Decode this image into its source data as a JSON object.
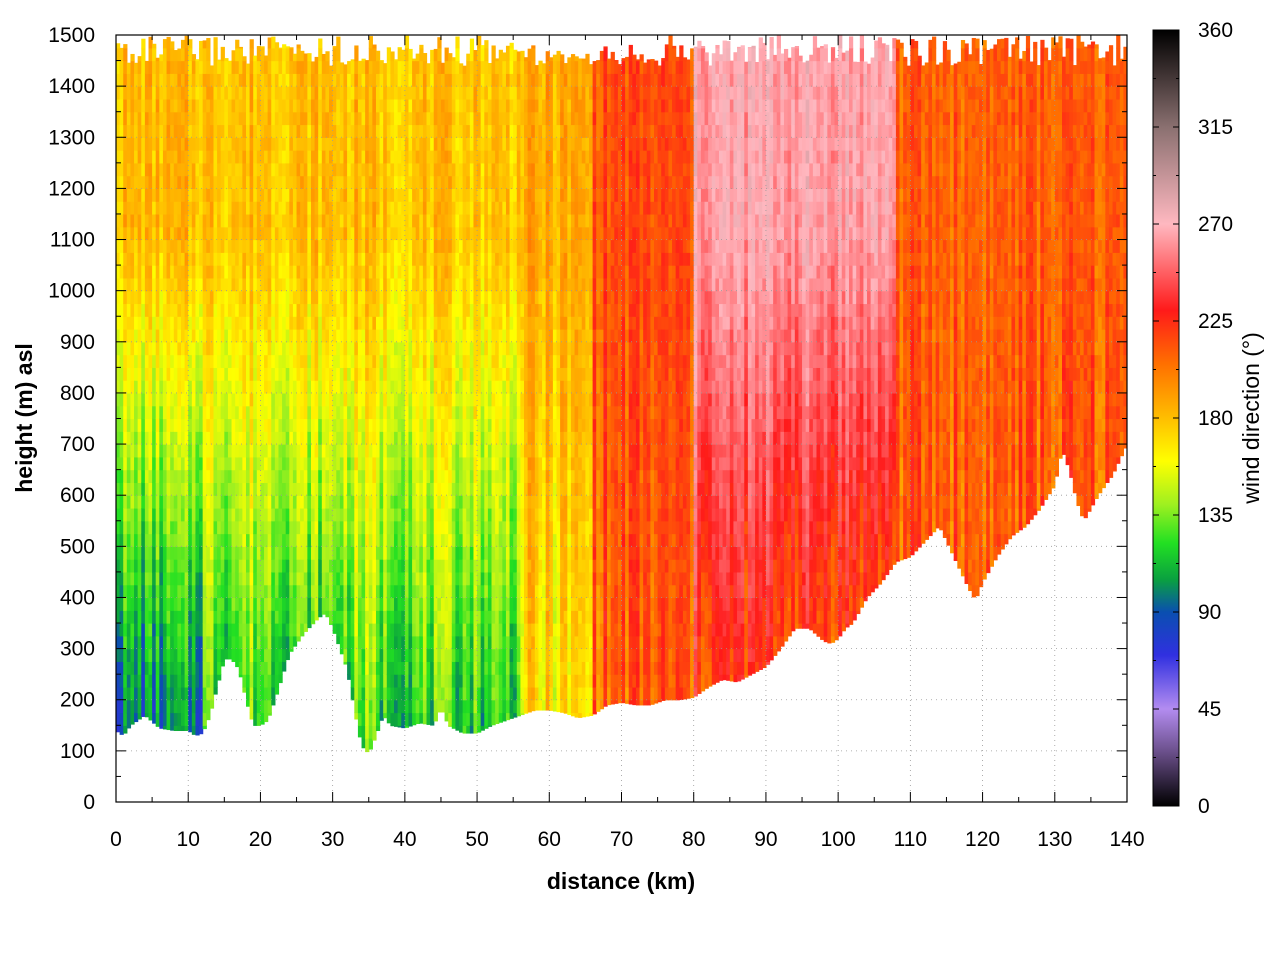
{
  "chart_data": {
    "type": "heatmap",
    "title": "",
    "xlabel": "distance (km)",
    "ylabel": "height (m) asl",
    "colorbar_label": "wind direction (°)",
    "xlim": [
      0,
      140
    ],
    "ylim": [
      0,
      1500
    ],
    "zlim": [
      0,
      360
    ],
    "x_ticks": [
      0,
      10,
      20,
      30,
      40,
      50,
      60,
      70,
      80,
      90,
      100,
      110,
      120,
      130,
      140
    ],
    "y_ticks": [
      0,
      100,
      200,
      300,
      400,
      500,
      600,
      700,
      800,
      900,
      1000,
      1100,
      1200,
      1300,
      1400,
      1500
    ],
    "colorbar_ticks": [
      0,
      45,
      90,
      135,
      180,
      225,
      270,
      315,
      360
    ],
    "grid": true,
    "colormap": [
      {
        "value": 0,
        "color": "#000000"
      },
      {
        "value": 25,
        "color": "#6a4f8a"
      },
      {
        "value": 45,
        "color": "#b38cf0"
      },
      {
        "value": 70,
        "color": "#3030e0"
      },
      {
        "value": 90,
        "color": "#0a4fb0"
      },
      {
        "value": 105,
        "color": "#0aa040"
      },
      {
        "value": 122,
        "color": "#22e022"
      },
      {
        "value": 140,
        "color": "#9ff020"
      },
      {
        "value": 160,
        "color": "#ffff00"
      },
      {
        "value": 180,
        "color": "#ffbe00"
      },
      {
        "value": 205,
        "color": "#ff7000"
      },
      {
        "value": 230,
        "color": "#ff1a1a"
      },
      {
        "value": 270,
        "color": "#ffb8c0"
      },
      {
        "value": 315,
        "color": "#8a7070"
      },
      {
        "value": 360,
        "color": "#000000"
      }
    ],
    "terrain": {
      "distance_km": [
        0,
        1,
        2,
        4,
        6,
        8,
        10,
        11,
        12,
        13,
        15,
        16,
        17,
        18,
        19,
        20,
        21,
        22,
        24,
        26,
        28,
        29,
        30,
        31,
        32,
        33,
        34,
        35,
        36,
        37,
        38,
        40,
        42,
        44,
        45,
        46,
        48,
        50,
        52,
        54,
        56,
        58,
        60,
        62,
        64,
        66,
        68,
        70,
        72,
        74,
        76,
        78,
        80,
        82,
        84,
        86,
        88,
        90,
        92,
        94,
        96,
        98,
        99,
        100,
        101,
        102,
        104,
        106,
        108,
        110,
        112,
        114,
        116,
        118,
        119,
        120,
        122,
        124,
        126,
        128,
        130,
        131,
        132,
        133,
        134,
        136,
        138,
        140
      ],
      "height_m": [
        140,
        130,
        150,
        170,
        145,
        140,
        140,
        130,
        135,
        170,
        280,
        280,
        260,
        200,
        150,
        150,
        160,
        200,
        290,
        330,
        360,
        370,
        340,
        300,
        260,
        180,
        110,
        95,
        130,
        170,
        150,
        145,
        155,
        150,
        185,
        150,
        135,
        135,
        150,
        160,
        170,
        180,
        180,
        175,
        165,
        170,
        190,
        195,
        190,
        190,
        200,
        200,
        205,
        225,
        240,
        235,
        250,
        265,
        300,
        340,
        340,
        315,
        310,
        320,
        340,
        350,
        400,
        430,
        470,
        480,
        510,
        540,
        480,
        420,
        395,
        430,
        480,
        520,
        540,
        575,
        620,
        690,
        650,
        590,
        550,
        600,
        640,
        700
      ]
    },
    "series": [
      {
        "name": "",
        "distance_range": [
          0,
          12
        ],
        "direction_low_levels": 95,
        "direction_upper_levels": 180
      },
      {
        "name": "",
        "distance_range": [
          12,
          36
        ],
        "direction_low_levels": 125,
        "direction_upper_levels": 180
      },
      {
        "name": "",
        "distance_range": [
          36,
          56
        ],
        "direction_low_levels": 120,
        "direction_upper_levels": 178
      },
      {
        "name": "",
        "distance_range": [
          56,
          66
        ],
        "direction_low_levels": 165,
        "direction_upper_levels": 185
      },
      {
        "name": "",
        "distance_range": [
          66,
          80
        ],
        "direction_low_levels": 210,
        "direction_upper_levels": 215
      },
      {
        "name": "",
        "distance_range": [
          80,
          108
        ],
        "direction_low_levels": 220,
        "direction_upper_levels": 265
      },
      {
        "name": "",
        "distance_range": [
          108,
          140
        ],
        "direction_low_levels": 210,
        "direction_upper_levels": 210
      }
    ]
  }
}
